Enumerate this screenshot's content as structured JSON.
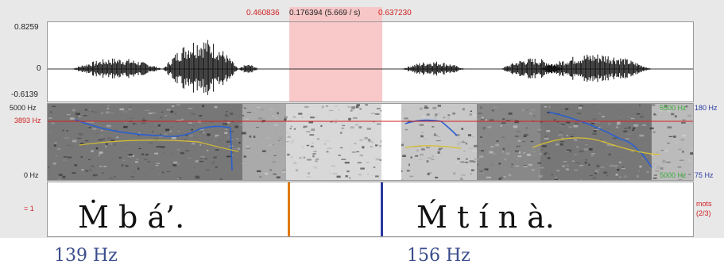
{
  "selection": {
    "start": "0.460836",
    "duration": "0.176394 (5.669 / s)",
    "end": "0.637230"
  },
  "waveform": {
    "y_max": "0.8259",
    "y_zero": "0",
    "y_min": "-0.6139"
  },
  "spectrogram": {
    "freq_max": "5000 Hz",
    "freq_cursor": "3893 Hz",
    "freq_min": "0 Hz",
    "pitch_max": "180 Hz",
    "pitch_min": "75 Hz",
    "green_top": "5500 Hz",
    "green_bottom": "5000 Hz"
  },
  "tier": {
    "left_label": "= 1",
    "right_label_1": "mots",
    "right_label_2": "(2/3)"
  },
  "words": {
    "w1": "Ṁ  b  á’.",
    "w2": "Ḿ    t  í  n  à."
  },
  "pitch_labels": {
    "p1": "139 Hz",
    "p2": "156 Hz"
  },
  "colors": {
    "selection": "#f9c8c8",
    "pitch_curve": "#2a5fd0",
    "formant_curve": "#d8c030",
    "boundary_orange": "#e07a10",
    "boundary_blue": "#2a3aa0"
  }
}
